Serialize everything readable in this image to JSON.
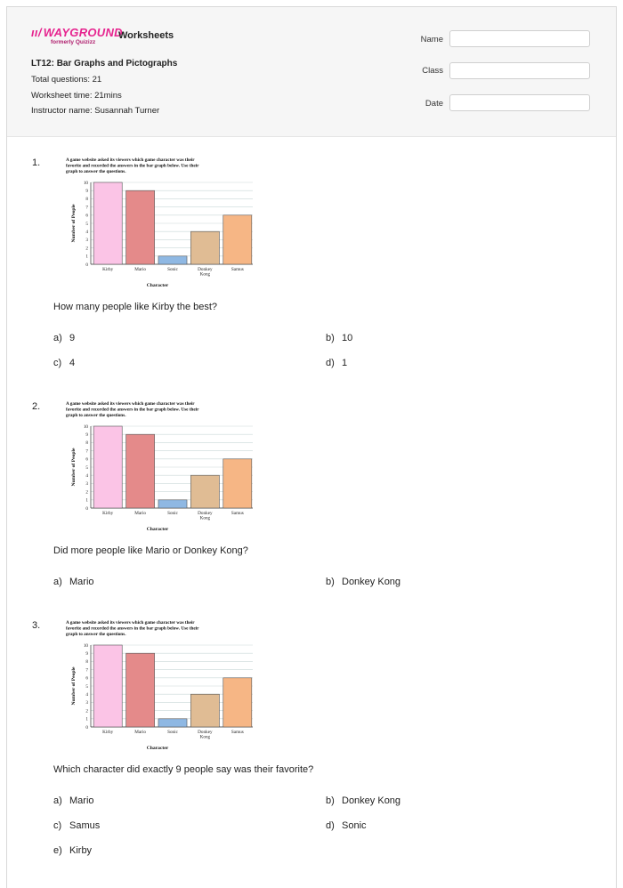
{
  "brand": {
    "logo_text": "WAYGROUND",
    "formerly": "formerly Quizizz",
    "product": "Worksheets"
  },
  "worksheet": {
    "title": "LT12: Bar Graphs and Pictographs",
    "total_questions": "Total questions: 21",
    "worksheet_time": "Worksheet time: 21mins",
    "instructor": "Instructor name: Susannah Turner"
  },
  "fields": {
    "name_label": "Name",
    "class_label": "Class",
    "date_label": "Date"
  },
  "chart_caption": "A game website asked its viewers which game character was their favorite and recorded the answers in the bar graph below. Use their graph to answer the questions.",
  "chart_data": [
    {
      "type": "bar",
      "title": "",
      "categories": [
        "Kirby",
        "Mario",
        "Sonic",
        "Donkey Kong",
        "Samus"
      ],
      "values": [
        10,
        9,
        1,
        4,
        6
      ],
      "colors": [
        "#fbc4e6",
        "#e48a8a",
        "#8fb8e3",
        "#e0bc94",
        "#f6b685"
      ],
      "xlabel": "Character",
      "ylabel": "Number of People",
      "ylim": [
        0,
        10
      ],
      "yticks": [
        "0",
        "1",
        "2",
        "3",
        "4",
        "5",
        "6",
        "7",
        "8",
        "9",
        "10"
      ],
      "grid": true
    }
  ],
  "questions": [
    {
      "number": "1.",
      "text": "How many people like Kirby the best?",
      "options": [
        {
          "letter": "a)",
          "text": "9"
        },
        {
          "letter": "b)",
          "text": "10"
        },
        {
          "letter": "c)",
          "text": "4"
        },
        {
          "letter": "d)",
          "text": "1"
        }
      ]
    },
    {
      "number": "2.",
      "text": "Did more people like Mario or Donkey Kong?",
      "options": [
        {
          "letter": "a)",
          "text": "Mario"
        },
        {
          "letter": "b)",
          "text": "Donkey Kong"
        }
      ]
    },
    {
      "number": "3.",
      "text": "Which character did exactly 9 people say was their favorite?",
      "options": [
        {
          "letter": "a)",
          "text": "Mario"
        },
        {
          "letter": "b)",
          "text": "Donkey Kong"
        },
        {
          "letter": "c)",
          "text": "Samus"
        },
        {
          "letter": "d)",
          "text": "Sonic"
        },
        {
          "letter": "e)",
          "text": "Kirby"
        }
      ]
    }
  ]
}
